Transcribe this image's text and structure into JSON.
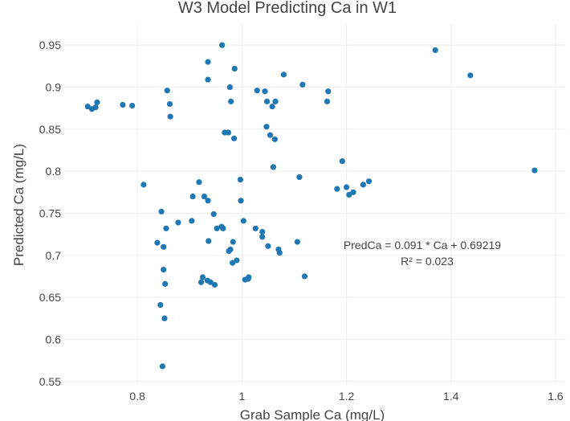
{
  "chart_data": {
    "type": "scatter",
    "title": "W3 Model Predicting Ca in W1",
    "xlabel": "Grab Sample Ca (mg/L)",
    "ylabel": "Predicted Ca (mg/L)",
    "xlim": [
      0.66,
      1.62
    ],
    "ylim": [
      0.545,
      0.975
    ],
    "x_ticks": [
      0.8,
      1.0,
      1.2,
      1.4,
      1.6
    ],
    "x_tick_labels": [
      "0.8",
      "1",
      "1.2",
      "1.4",
      "1.6"
    ],
    "y_ticks": [
      0.55,
      0.6,
      0.65,
      0.7,
      0.75,
      0.8,
      0.85,
      0.9,
      0.95
    ],
    "y_tick_labels": [
      "0.55",
      "0.6",
      "0.65",
      "0.7",
      "0.75",
      "0.8",
      "0.85",
      "0.9",
      "0.95"
    ],
    "grid": true,
    "color": "#1f77b4",
    "annotation": {
      "line1": "PredCa  =  0.091 * Ca + 0.69219",
      "line2": "R² =  0.023"
    },
    "points": [
      {
        "x": 0.705,
        "y": 0.877
      },
      {
        "x": 0.713,
        "y": 0.874
      },
      {
        "x": 0.72,
        "y": 0.876
      },
      {
        "x": 0.723,
        "y": 0.882
      },
      {
        "x": 0.772,
        "y": 0.879
      },
      {
        "x": 0.79,
        "y": 0.878
      },
      {
        "x": 0.812,
        "y": 0.784
      },
      {
        "x": 0.838,
        "y": 0.715
      },
      {
        "x": 0.844,
        "y": 0.641
      },
      {
        "x": 0.846,
        "y": 0.752
      },
      {
        "x": 0.848,
        "y": 0.568
      },
      {
        "x": 0.85,
        "y": 0.71
      },
      {
        "x": 0.85,
        "y": 0.683
      },
      {
        "x": 0.852,
        "y": 0.625
      },
      {
        "x": 0.853,
        "y": 0.666
      },
      {
        "x": 0.855,
        "y": 0.732
      },
      {
        "x": 0.857,
        "y": 0.896
      },
      {
        "x": 0.862,
        "y": 0.88
      },
      {
        "x": 0.863,
        "y": 0.865
      },
      {
        "x": 0.878,
        "y": 0.739
      },
      {
        "x": 0.904,
        "y": 0.741
      },
      {
        "x": 0.906,
        "y": 0.77
      },
      {
        "x": 0.918,
        "y": 0.787
      },
      {
        "x": 0.922,
        "y": 0.668
      },
      {
        "x": 0.925,
        "y": 0.674
      },
      {
        "x": 0.928,
        "y": 0.77
      },
      {
        "x": 0.934,
        "y": 0.67
      },
      {
        "x": 0.935,
        "y": 0.93
      },
      {
        "x": 0.935,
        "y": 0.909
      },
      {
        "x": 0.935,
        "y": 0.765
      },
      {
        "x": 0.936,
        "y": 0.717
      },
      {
        "x": 0.94,
        "y": 0.668
      },
      {
        "x": 0.946,
        "y": 0.749
      },
      {
        "x": 0.948,
        "y": 0.665
      },
      {
        "x": 0.952,
        "y": 0.732
      },
      {
        "x": 0.961,
        "y": 0.734
      },
      {
        "x": 0.962,
        "y": 0.95
      },
      {
        "x": 0.964,
        "y": 0.732
      },
      {
        "x": 0.967,
        "y": 0.846
      },
      {
        "x": 0.974,
        "y": 0.846
      },
      {
        "x": 0.975,
        "y": 0.705
      },
      {
        "x": 0.977,
        "y": 0.9
      },
      {
        "x": 0.978,
        "y": 0.707
      },
      {
        "x": 0.979,
        "y": 0.883
      },
      {
        "x": 0.982,
        "y": 0.691
      },
      {
        "x": 0.983,
        "y": 0.716
      },
      {
        "x": 0.985,
        "y": 0.839
      },
      {
        "x": 0.986,
        "y": 0.922
      },
      {
        "x": 0.99,
        "y": 0.694
      },
      {
        "x": 0.997,
        "y": 0.79
      },
      {
        "x": 0.998,
        "y": 0.765
      },
      {
        "x": 1.003,
        "y": 0.741
      },
      {
        "x": 1.006,
        "y": 0.671
      },
      {
        "x": 1.012,
        "y": 0.672
      },
      {
        "x": 1.013,
        "y": 0.674
      },
      {
        "x": 1.026,
        "y": 0.732
      },
      {
        "x": 1.029,
        "y": 0.896
      },
      {
        "x": 1.039,
        "y": 0.722
      },
      {
        "x": 1.039,
        "y": 0.728
      },
      {
        "x": 1.044,
        "y": 0.895
      },
      {
        "x": 1.047,
        "y": 0.853
      },
      {
        "x": 1.048,
        "y": 0.883
      },
      {
        "x": 1.05,
        "y": 0.711
      },
      {
        "x": 1.054,
        "y": 0.843
      },
      {
        "x": 1.058,
        "y": 0.877
      },
      {
        "x": 1.06,
        "y": 0.805
      },
      {
        "x": 1.063,
        "y": 0.838
      },
      {
        "x": 1.064,
        "y": 0.883
      },
      {
        "x": 1.07,
        "y": 0.707
      },
      {
        "x": 1.072,
        "y": 0.703
      },
      {
        "x": 1.08,
        "y": 0.915
      },
      {
        "x": 1.106,
        "y": 0.716
      },
      {
        "x": 1.11,
        "y": 0.793
      },
      {
        "x": 1.116,
        "y": 0.903
      },
      {
        "x": 1.12,
        "y": 0.675
      },
      {
        "x": 1.163,
        "y": 0.883
      },
      {
        "x": 1.165,
        "y": 0.895
      },
      {
        "x": 1.182,
        "y": 0.779
      },
      {
        "x": 1.192,
        "y": 0.812
      },
      {
        "x": 1.2,
        "y": 0.781
      },
      {
        "x": 1.205,
        "y": 0.772
      },
      {
        "x": 1.213,
        "y": 0.775
      },
      {
        "x": 1.232,
        "y": 0.784
      },
      {
        "x": 1.243,
        "y": 0.788
      },
      {
        "x": 1.37,
        "y": 0.944
      },
      {
        "x": 1.437,
        "y": 0.914
      },
      {
        "x": 1.56,
        "y": 0.801
      }
    ]
  }
}
